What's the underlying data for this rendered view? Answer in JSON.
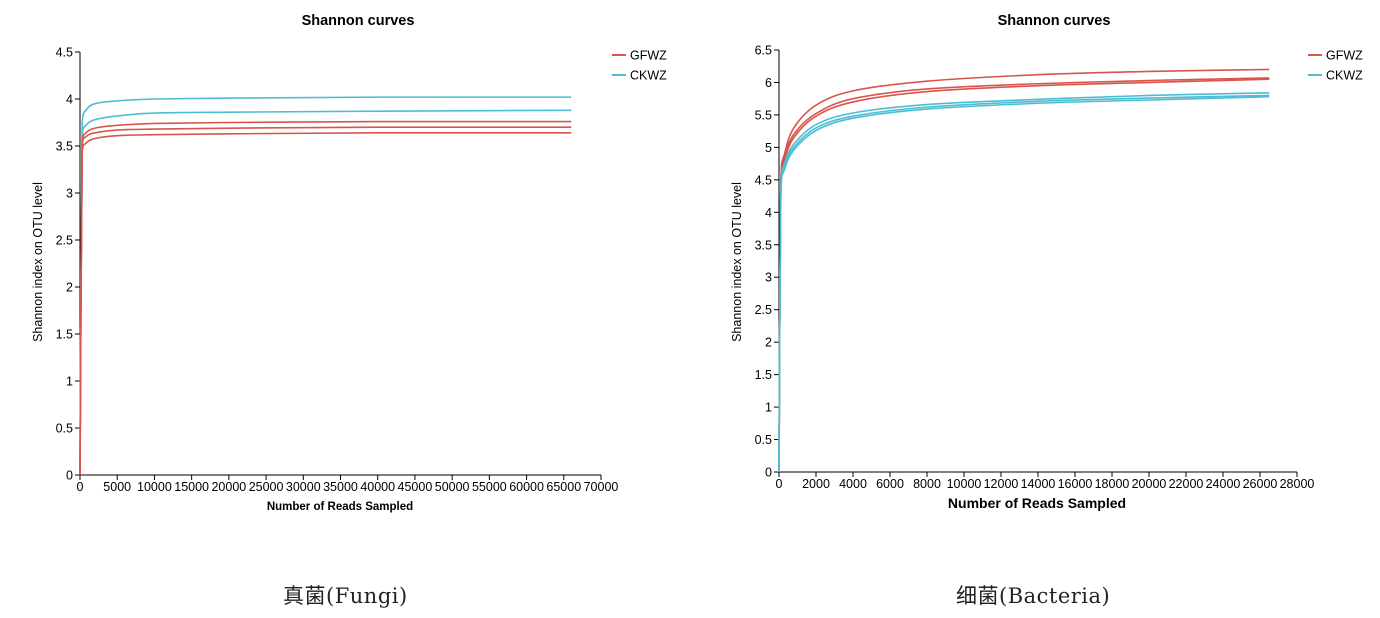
{
  "chart_data": [
    {
      "type": "line",
      "title": "Shannon curves",
      "xlabel": "Number of Reads Sampled",
      "ylabel": "Shannon index on OTU level",
      "caption": "真菌(Fungi)",
      "xlim": [
        0,
        70000
      ],
      "ylim": [
        0,
        4.5
      ],
      "xticks": [
        0,
        5000,
        10000,
        15000,
        20000,
        25000,
        30000,
        35000,
        40000,
        45000,
        50000,
        55000,
        60000,
        65000,
        70000
      ],
      "yticks": [
        0,
        0.5,
        1,
        1.5,
        2,
        2.5,
        3,
        3.5,
        4,
        4.5
      ],
      "ytick_labels": [
        "0",
        "0.5",
        "1",
        "1.5",
        "2",
        "2.5",
        "3",
        "3.5",
        "4",
        "4.5"
      ],
      "grid": false,
      "legend": {
        "position": "top-right",
        "entries": [
          {
            "name": "GFWZ",
            "color": "#d9544a"
          },
          {
            "name": "CKWZ",
            "color": "#4dbdd3"
          }
        ]
      },
      "series": [
        {
          "name": "CKWZ",
          "color": "#4dbdd3",
          "x": [
            0,
            300,
            800,
            2000,
            5000,
            10000,
            20000,
            40000,
            66000
          ],
          "y": [
            0,
            3.75,
            3.88,
            3.95,
            3.98,
            4.0,
            4.01,
            4.02,
            4.02
          ]
        },
        {
          "name": "CKWZ",
          "color": "#4dbdd3",
          "x": [
            0,
            300,
            800,
            2000,
            5000,
            10000,
            20000,
            40000,
            66000
          ],
          "y": [
            0,
            3.62,
            3.72,
            3.78,
            3.82,
            3.85,
            3.86,
            3.87,
            3.88
          ]
        },
        {
          "name": "GFWZ",
          "color": "#d9544a",
          "x": [
            0,
            300,
            800,
            2000,
            5000,
            10000,
            20000,
            40000,
            66000
          ],
          "y": [
            0,
            3.55,
            3.64,
            3.69,
            3.72,
            3.74,
            3.75,
            3.76,
            3.76
          ]
        },
        {
          "name": "GFWZ",
          "color": "#d9544a",
          "x": [
            0,
            300,
            800,
            2000,
            5000,
            10000,
            20000,
            40000,
            66000
          ],
          "y": [
            0,
            3.52,
            3.6,
            3.64,
            3.67,
            3.68,
            3.69,
            3.7,
            3.7
          ]
        },
        {
          "name": "GFWZ",
          "color": "#d9544a",
          "x": [
            0,
            300,
            800,
            2000,
            5000,
            10000,
            20000,
            40000,
            66000
          ],
          "y": [
            0,
            3.45,
            3.53,
            3.58,
            3.61,
            3.62,
            3.63,
            3.64,
            3.64
          ]
        }
      ]
    },
    {
      "type": "line",
      "title": "Shannon curves",
      "xlabel": "Number of Reads Sampled",
      "ylabel": "Shannon index on OTU level",
      "caption": "细菌(Bacteria)",
      "xlim": [
        0,
        28000
      ],
      "ylim": [
        0,
        6.5
      ],
      "xticks": [
        0,
        2000,
        4000,
        6000,
        8000,
        10000,
        12000,
        14000,
        16000,
        18000,
        20000,
        22000,
        24000,
        26000,
        28000
      ],
      "yticks": [
        0,
        0.5,
        1,
        1.5,
        2,
        2.5,
        3,
        3.5,
        4,
        4.5,
        5,
        5.5,
        6,
        6.5
      ],
      "ytick_labels": [
        "0",
        "0.5",
        "1",
        "1.5",
        "2",
        "2.5",
        "3",
        "3.5",
        "4",
        "4.5",
        "5",
        "5.5",
        "6",
        "6.5"
      ],
      "grid": false,
      "legend": {
        "position": "top-right",
        "entries": [
          {
            "name": "GFWZ",
            "color": "#d9544a"
          },
          {
            "name": "CKWZ",
            "color": "#4dbdd3"
          }
        ]
      },
      "series": [
        {
          "name": "GFWZ",
          "color": "#d9544a",
          "x": [
            0,
            100,
            300,
            800,
            2000,
            4000,
            8000,
            14000,
            20000,
            26500
          ],
          "y": [
            0,
            4.5,
            4.9,
            5.3,
            5.65,
            5.87,
            6.02,
            6.12,
            6.17,
            6.2
          ]
        },
        {
          "name": "GFWZ",
          "color": "#d9544a",
          "x": [
            0,
            100,
            300,
            800,
            2000,
            4000,
            8000,
            14000,
            20000,
            26500
          ],
          "y": [
            0,
            4.45,
            4.85,
            5.2,
            5.52,
            5.75,
            5.9,
            5.98,
            6.03,
            6.07
          ]
        },
        {
          "name": "GFWZ",
          "color": "#d9544a",
          "x": [
            0,
            100,
            300,
            800,
            2000,
            4000,
            8000,
            14000,
            20000,
            26500
          ],
          "y": [
            0,
            4.42,
            4.8,
            5.15,
            5.48,
            5.7,
            5.86,
            5.95,
            6.0,
            6.05
          ]
        },
        {
          "name": "CKWZ",
          "color": "#4dbdd3",
          "x": [
            0,
            100,
            300,
            800,
            2000,
            4000,
            8000,
            14000,
            20000,
            26500
          ],
          "y": [
            0,
            4.4,
            4.75,
            5.05,
            5.35,
            5.53,
            5.66,
            5.74,
            5.8,
            5.84
          ]
        },
        {
          "name": "CKWZ",
          "color": "#4dbdd3",
          "x": [
            0,
            100,
            300,
            800,
            2000,
            4000,
            8000,
            14000,
            20000,
            26500
          ],
          "y": [
            0,
            4.35,
            4.7,
            5.0,
            5.3,
            5.48,
            5.62,
            5.71,
            5.76,
            5.8
          ]
        },
        {
          "name": "CKWZ",
          "color": "#4dbdd3",
          "x": [
            0,
            100,
            300,
            800,
            2000,
            4000,
            8000,
            14000,
            20000,
            26500
          ],
          "y": [
            0,
            4.32,
            4.66,
            4.96,
            5.26,
            5.45,
            5.59,
            5.68,
            5.73,
            5.78
          ]
        }
      ]
    }
  ]
}
